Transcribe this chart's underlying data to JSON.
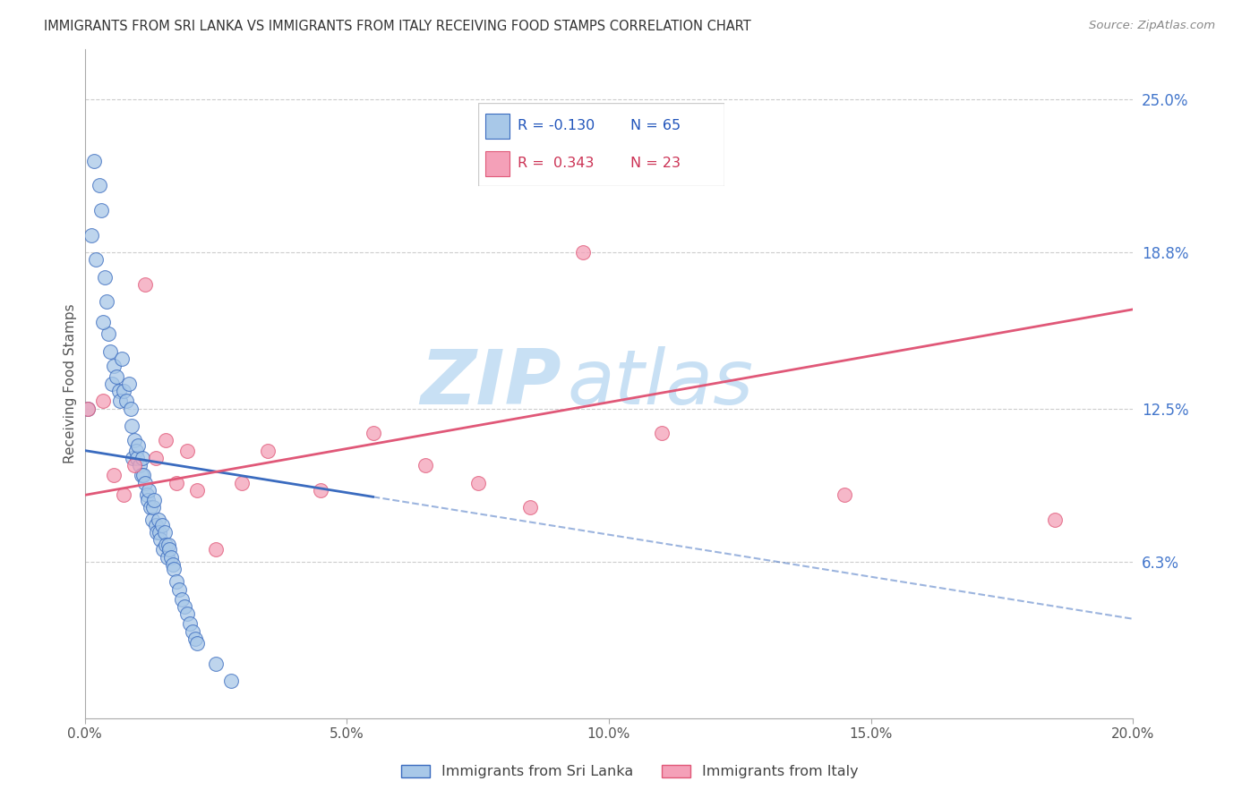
{
  "title": "IMMIGRANTS FROM SRI LANKA VS IMMIGRANTS FROM ITALY RECEIVING FOOD STAMPS CORRELATION CHART",
  "source": "Source: ZipAtlas.com",
  "ylabel": "Receiving Food Stamps",
  "x_tick_labels": [
    "0.0%",
    "5.0%",
    "10.0%",
    "15.0%",
    "20.0%"
  ],
  "x_tick_values": [
    0.0,
    5.0,
    10.0,
    15.0,
    20.0
  ],
  "y_tick_labels": [
    "6.3%",
    "12.5%",
    "18.8%",
    "25.0%"
  ],
  "y_tick_values": [
    6.3,
    12.5,
    18.8,
    25.0
  ],
  "xlim": [
    0.0,
    20.0
  ],
  "ylim": [
    0.0,
    27.0
  ],
  "legend_label_1": "Immigrants from Sri Lanka",
  "legend_label_2": "Immigrants from Italy",
  "r1": "-0.130",
  "n1": "65",
  "r2": "0.343",
  "n2": "23",
  "color_sri_lanka": "#a8c8e8",
  "color_italy": "#f4a0b8",
  "line_color_sri_lanka": "#3a6bbf",
  "line_color_italy": "#e05878",
  "watermark_zip": "ZIP",
  "watermark_atlas": "atlas",
  "watermark_color": "#c8e0f4",
  "background_color": "#ffffff",
  "sl_line_x0": 0.0,
  "sl_line_y0": 10.8,
  "sl_line_x1": 20.0,
  "sl_line_y1": 4.0,
  "it_line_x0": 0.0,
  "it_line_y0": 9.0,
  "it_line_x1": 20.0,
  "it_line_y1": 16.5,
  "sl_dash_start": 5.5,
  "sri_lanka_x": [
    0.05,
    0.18,
    0.28,
    0.32,
    0.12,
    0.22,
    0.38,
    0.42,
    0.45,
    0.35,
    0.48,
    0.52,
    0.55,
    0.6,
    0.65,
    0.68,
    0.7,
    0.75,
    0.8,
    0.85,
    0.88,
    0.9,
    0.92,
    0.95,
    0.98,
    1.0,
    1.02,
    1.05,
    1.08,
    1.1,
    1.12,
    1.15,
    1.18,
    1.2,
    1.22,
    1.25,
    1.28,
    1.3,
    1.32,
    1.35,
    1.38,
    1.4,
    1.42,
    1.45,
    1.48,
    1.5,
    1.52,
    1.55,
    1.58,
    1.6,
    1.62,
    1.65,
    1.68,
    1.7,
    1.75,
    1.8,
    1.85,
    1.9,
    1.95,
    2.0,
    2.05,
    2.1,
    2.15,
    2.5,
    2.8
  ],
  "sri_lanka_y": [
    12.5,
    22.5,
    21.5,
    20.5,
    19.5,
    18.5,
    17.8,
    16.8,
    15.5,
    16.0,
    14.8,
    13.5,
    14.2,
    13.8,
    13.2,
    12.8,
    14.5,
    13.2,
    12.8,
    13.5,
    12.5,
    11.8,
    10.5,
    11.2,
    10.8,
    10.5,
    11.0,
    10.2,
    9.8,
    10.5,
    9.8,
    9.5,
    9.0,
    8.8,
    9.2,
    8.5,
    8.0,
    8.5,
    8.8,
    7.8,
    7.5,
    8.0,
    7.5,
    7.2,
    7.8,
    6.8,
    7.5,
    7.0,
    6.5,
    7.0,
    6.8,
    6.5,
    6.2,
    6.0,
    5.5,
    5.2,
    4.8,
    4.5,
    4.2,
    3.8,
    3.5,
    3.2,
    3.0,
    2.2,
    1.5
  ],
  "italy_x": [
    0.05,
    0.35,
    0.55,
    0.75,
    0.95,
    1.15,
    1.35,
    1.55,
    1.75,
    1.95,
    2.15,
    2.5,
    3.0,
    3.5,
    4.5,
    5.5,
    6.5,
    7.5,
    8.5,
    9.5,
    11.0,
    14.5,
    18.5
  ],
  "italy_y": [
    12.5,
    12.8,
    9.8,
    9.0,
    10.2,
    17.5,
    10.5,
    11.2,
    9.5,
    10.8,
    9.2,
    6.8,
    9.5,
    10.8,
    9.2,
    11.5,
    10.2,
    9.5,
    8.5,
    18.8,
    11.5,
    9.0,
    8.0
  ]
}
